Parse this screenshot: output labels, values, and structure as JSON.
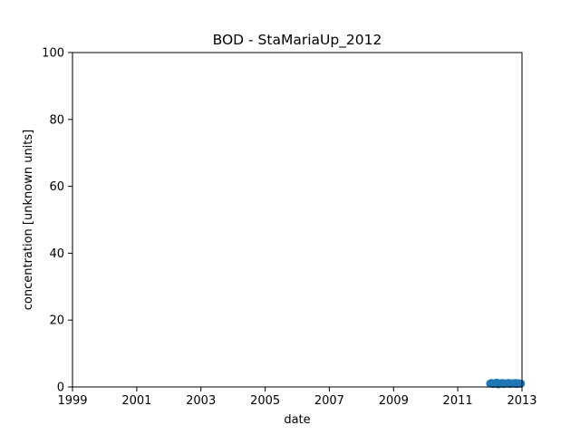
{
  "chart_data": {
    "type": "scatter",
    "title": "BOD - StaMariaUp_2012",
    "xlabel": "date",
    "ylabel": "concentration [unknown units]",
    "xlim": [
      "1999-01-01",
      "2013-01-01"
    ],
    "ylim": [
      0,
      100
    ],
    "x_ticks": [
      "1999",
      "2001",
      "2003",
      "2005",
      "2007",
      "2009",
      "2011",
      "2013"
    ],
    "y_ticks": [
      0,
      20,
      40,
      60,
      80,
      100
    ],
    "grid": false,
    "marker_color": "#1f77b4",
    "series": [
      {
        "x": [
          "2012-01-05",
          "2012-01-20",
          "2012-02-05",
          "2012-02-20",
          "2012-03-05",
          "2012-03-20",
          "2012-04-05",
          "2012-04-20",
          "2012-05-05",
          "2012-05-20",
          "2012-06-05",
          "2012-06-20",
          "2012-07-05",
          "2012-07-20",
          "2012-08-05",
          "2012-08-20",
          "2012-09-05",
          "2012-09-20",
          "2012-10-05",
          "2012-10-20",
          "2012-11-05",
          "2012-11-20",
          "2012-12-05",
          "2012-12-20"
        ],
        "y": [
          1.0,
          1.2,
          0.9,
          1.1,
          1.0,
          1.3,
          0.8,
          1.1,
          1.0,
          1.2,
          0.9,
          1.0,
          1.1,
          1.0,
          1.2,
          0.9,
          1.0,
          1.1,
          1.0,
          1.2,
          0.9,
          1.1,
          1.0,
          1.0
        ]
      }
    ]
  }
}
